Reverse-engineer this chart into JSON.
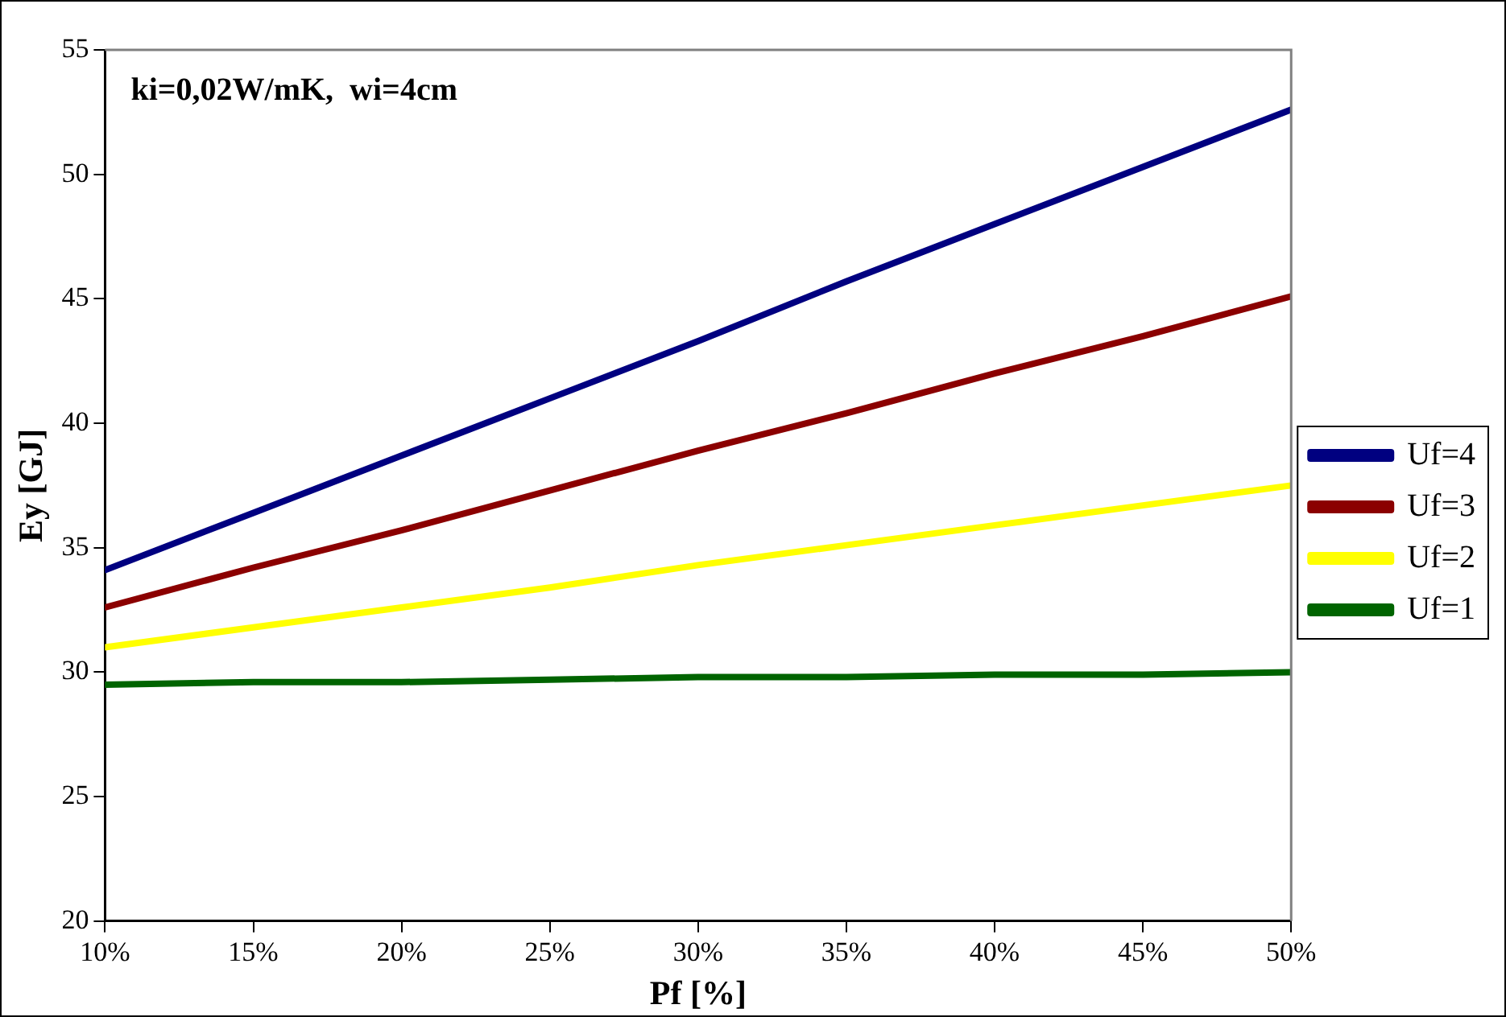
{
  "chart_data": {
    "type": "line",
    "xlabel": "Pf [%]",
    "ylabel": "Ey [GJ]",
    "annotations": [
      "ki=0,02W/mK,  wi=4cm"
    ],
    "x": [
      10,
      15,
      20,
      25,
      30,
      35,
      40,
      45,
      50
    ],
    "xlim": [
      10,
      50
    ],
    "xticks": [
      {
        "value": 10,
        "label": "10%"
      },
      {
        "value": 15,
        "label": "15%"
      },
      {
        "value": 20,
        "label": "20%"
      },
      {
        "value": 25,
        "label": "25%"
      },
      {
        "value": 30,
        "label": "30%"
      },
      {
        "value": 35,
        "label": "35%"
      },
      {
        "value": 40,
        "label": "40%"
      },
      {
        "value": 45,
        "label": "45%"
      },
      {
        "value": 50,
        "label": "50%"
      }
    ],
    "ylim": [
      20,
      55
    ],
    "yticks": [
      20,
      25,
      30,
      35,
      40,
      45,
      50,
      55
    ],
    "series": [
      {
        "name": "Uf=4",
        "color": "#000080",
        "values": [
          34.1,
          36.4,
          38.7,
          41.0,
          43.3,
          45.7,
          48.0,
          50.3,
          52.6
        ]
      },
      {
        "name": "Uf=3",
        "color": "#8b0000",
        "values": [
          32.6,
          34.2,
          35.7,
          37.3,
          38.9,
          40.4,
          42.0,
          43.5,
          45.1
        ]
      },
      {
        "name": "Uf=2",
        "color": "#ffff00",
        "values": [
          31.0,
          31.8,
          32.6,
          33.4,
          34.3,
          35.1,
          35.9,
          36.7,
          37.5
        ]
      },
      {
        "name": "Uf=1",
        "color": "#006400",
        "values": [
          29.5,
          29.6,
          29.6,
          29.7,
          29.8,
          29.8,
          29.9,
          29.9,
          30.0
        ]
      }
    ],
    "grid": false,
    "legend": "right",
    "marker": "none",
    "line_style": "solid"
  }
}
